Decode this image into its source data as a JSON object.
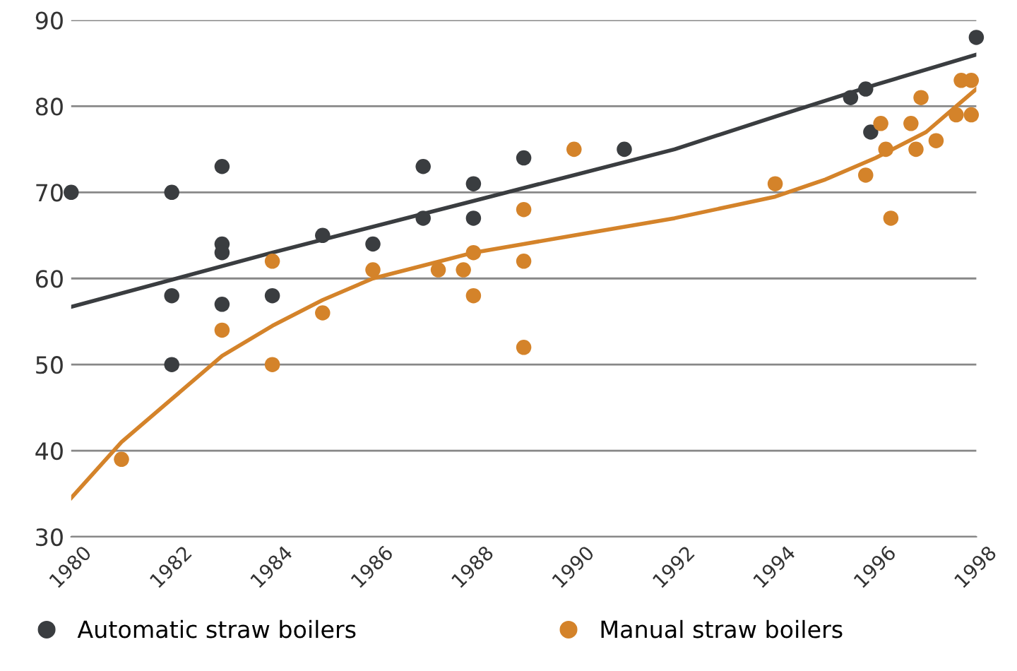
{
  "chart_data": {
    "type": "scatter",
    "xlim": [
      1980,
      1998
    ],
    "xticks": [
      1980,
      1982,
      1984,
      1986,
      1988,
      1990,
      1992,
      1994,
      1996,
      1998
    ],
    "ylim": [
      30,
      90
    ],
    "yticks": [
      30,
      40,
      50,
      60,
      70,
      80,
      90
    ],
    "grid": "y",
    "legend": "bottom",
    "series": [
      {
        "name": "Automatic straw boilers",
        "color": "#3a3d40",
        "marker": "circle",
        "x": [
          1980,
          1982,
          1982,
          1982,
          1983,
          1983,
          1983,
          1983,
          1984,
          1985,
          1986,
          1987,
          1987,
          1988,
          1988,
          1989,
          1991,
          1995.5,
          1995.8,
          1995.9,
          1998
        ],
        "values": [
          70,
          70,
          58,
          50,
          73,
          64,
          63,
          57,
          58,
          65,
          64,
          73,
          67,
          71,
          67,
          74,
          75,
          81,
          82,
          77,
          88
        ]
      },
      {
        "name": "Manual straw boilers",
        "color": "#d4832a",
        "marker": "circle",
        "x": [
          1981,
          1983,
          1984,
          1984,
          1985,
          1986,
          1987.3,
          1987.8,
          1988,
          1988,
          1989,
          1989,
          1989,
          1990,
          1994,
          1995.8,
          1996.1,
          1996.2,
          1996.3,
          1996.7,
          1996.8,
          1996.9,
          1997.2,
          1997.6,
          1997.7,
          1997.9,
          1997.9
        ],
        "values": [
          39,
          54,
          62,
          50,
          56,
          61,
          61,
          61,
          63,
          58,
          68,
          62,
          52,
          75,
          71,
          72,
          78,
          75,
          67,
          78,
          75,
          81,
          76,
          79,
          83,
          83,
          79
        ]
      },
      {
        "type": "line",
        "color": "#3a3d40",
        "x": [
          1980,
          1984,
          1988,
          1992,
          1994,
          1996,
          1998
        ],
        "values": [
          56.7,
          63,
          69,
          75,
          78.8,
          82.5,
          86
        ]
      },
      {
        "type": "line",
        "color": "#d4832a",
        "x": [
          1980,
          1981,
          1982,
          1983,
          1984,
          1985,
          1986,
          1987,
          1988,
          1989,
          1990,
          1992,
          1994,
          1995,
          1996,
          1997,
          1998
        ],
        "values": [
          34.5,
          41,
          46,
          51,
          54.5,
          57.5,
          60,
          61.5,
          63,
          64,
          65,
          67,
          69.5,
          71.5,
          74,
          77,
          82
        ]
      }
    ]
  }
}
